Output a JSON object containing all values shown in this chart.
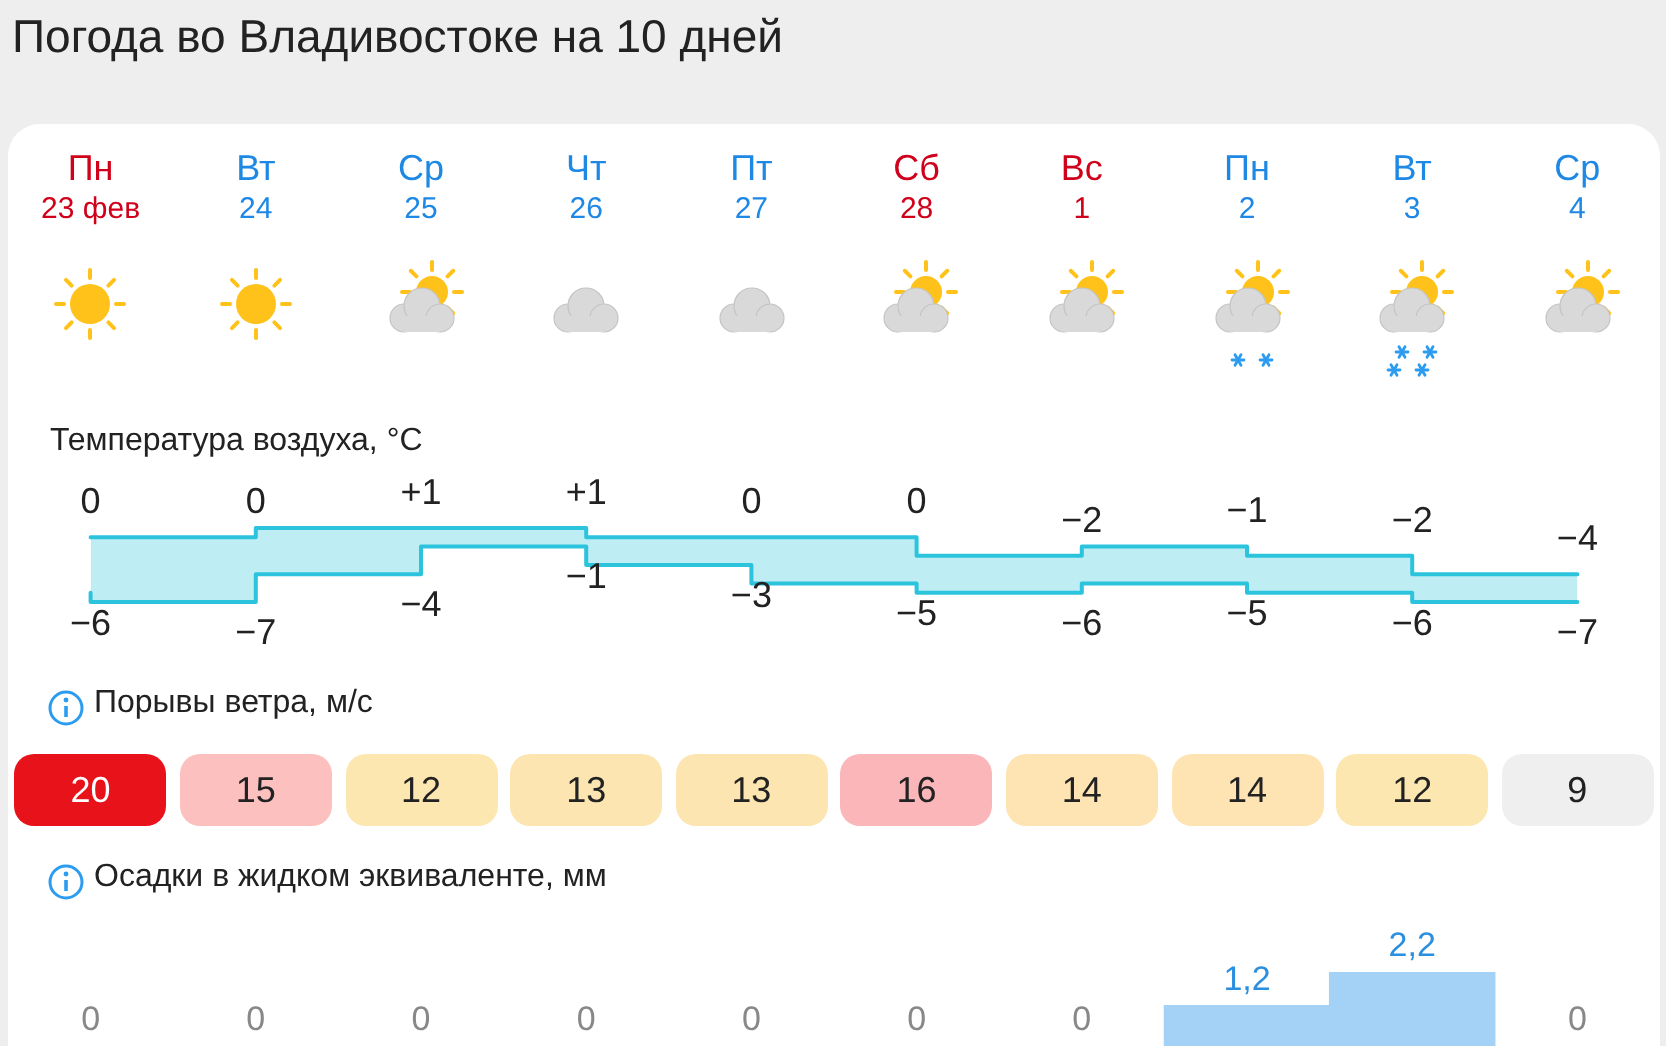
{
  "chart_data": [
    {
      "type": "step",
      "title": "Погода во Владивостоке на 10 дней",
      "subtitle": "Температура воздуха, °C",
      "categories": [
        "Пн\n23 фев",
        "Вт\n24",
        "Ср\n25",
        "Чт\n26",
        "Пт\n27",
        "Сб\n28",
        "Вс\n1",
        "Пн\n2",
        "Вт\n3",
        "Ср\n4"
      ],
      "tick_labels": "x",
      "line_style": "solid",
      "series": [
        {
          "color": "#2cc3dc",
          "values": [
            0,
            0,
            1,
            1,
            0,
            0,
            -2,
            -1,
            -2,
            -4
          ],
          "value_labels": [
            "0",
            "0",
            "+1",
            "+1",
            "0",
            "0",
            "−2",
            "−1",
            "−2",
            "−4"
          ],
          "lower": [
            -6,
            -7,
            -4,
            -1,
            -3,
            -5,
            -6,
            -5,
            -6,
            -7
          ],
          "upper": [
            0,
            0,
            1,
            1,
            0,
            0,
            -2,
            -1,
            -2,
            -4
          ]
        },
        {
          "color": "#2cc3dc",
          "values": [
            -6,
            -7,
            -4,
            -1,
            -3,
            -5,
            -6,
            -5,
            -6,
            -7
          ],
          "value_labels": [
            "−6",
            "−7",
            "−4",
            "−1",
            "−3",
            "−5",
            "−6",
            "−5",
            "−6",
            "−7"
          ]
        }
      ]
    },
    {
      "type": "other",
      "title": "Порывы ветра, м/с",
      "categories": [
        null,
        null,
        null,
        null,
        null,
        null,
        null,
        null,
        null,
        null
      ],
      "values": [
        20,
        15,
        12,
        13,
        13,
        16,
        14,
        14,
        12,
        9
      ],
      "data_labels": true
    },
    {
      "type": "bar",
      "title": "Осадки в жидком эквиваленте, мм",
      "categories": [
        null,
        null,
        null,
        null,
        null,
        null,
        null,
        null,
        null,
        null
      ],
      "values": [
        0,
        0,
        0,
        0,
        0,
        0,
        0,
        1.2,
        2.2,
        0
      ],
      "value_labels": [
        "0",
        "0",
        "0",
        "0",
        "0",
        "0",
        "0",
        "1,2",
        "2,2",
        "0"
      ],
      "color": "#a4d2f6"
    }
  ]
}
